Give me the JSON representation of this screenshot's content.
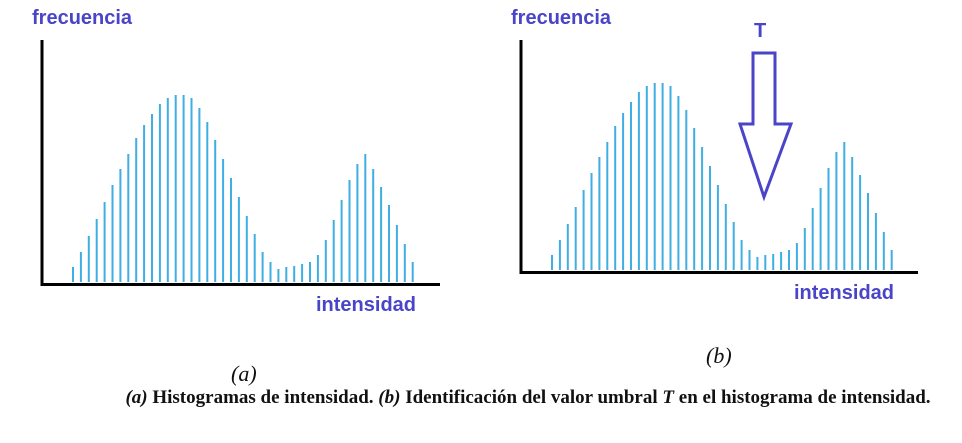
{
  "chart_data": [
    {
      "type": "bar",
      "ylabel": "frecuencia",
      "xlabel": "intensidad",
      "panel": "(a)",
      "values": [
        15,
        30,
        46,
        63,
        80,
        97,
        113,
        128,
        144,
        157,
        168,
        178,
        184,
        187,
        187,
        184,
        174,
        160,
        142,
        123,
        104,
        85,
        66,
        48,
        30,
        20,
        13,
        15,
        16,
        18,
        20,
        27,
        42,
        62,
        82,
        102,
        118,
        128,
        113,
        95,
        77,
        57,
        38,
        20
      ]
    },
    {
      "type": "bar",
      "ylabel": "frecuencia",
      "xlabel": "intensidad",
      "panel": "(b)",
      "annotation": "T",
      "values": [
        15,
        30,
        46,
        63,
        80,
        97,
        113,
        128,
        144,
        157,
        168,
        178,
        184,
        187,
        187,
        184,
        174,
        160,
        142,
        123,
        104,
        85,
        66,
        48,
        30,
        20,
        13,
        15,
        16,
        18,
        20,
        27,
        42,
        62,
        82,
        102,
        118,
        128,
        113,
        95,
        77,
        57,
        38,
        20
      ]
    }
  ],
  "caption": {
    "a_tag": "(a)",
    "a_text": " Histogramas de intensidad. ",
    "b_tag": "(b)",
    "b_text": " Identificación del valor umbral ",
    "t": "T",
    "rest": " en el histograma de intensidad."
  },
  "colors": {
    "bars": "#3eaee3",
    "axis_text": "#4a45c8",
    "axis": "#000000"
  }
}
